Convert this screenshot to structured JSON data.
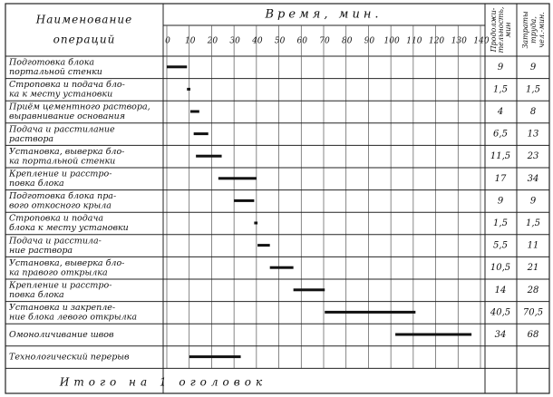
{
  "header": {
    "operations": [
      "Наименование",
      "операций"
    ],
    "time": "Время, мин.",
    "duration": [
      "Продолжи-",
      "тельность,",
      "мин"
    ],
    "labor": [
      "Затраты",
      "труда,",
      "чел.-мин."
    ]
  },
  "timeline": {
    "xlim": [
      0,
      140
    ],
    "xticks": [
      0,
      10,
      20,
      30,
      40,
      50,
      60,
      70,
      80,
      90,
      100,
      110,
      120,
      130,
      140
    ]
  },
  "rows": [
    {
      "name": [
        "Подготовка блока",
        "портальной стенки"
      ],
      "duration": "9",
      "labor": "9",
      "start": 0,
      "end": 9
    },
    {
      "name": [
        "Строповка и подача бло-",
        "ка к месту установки"
      ],
      "duration": "1,5",
      "labor": "1,5",
      "start": 9,
      "end": 10.5
    },
    {
      "name": [
        "Приём цементного раствора,",
        "выравнивание основания"
      ],
      "duration": "4",
      "labor": "8",
      "start": 10.5,
      "end": 14.5
    },
    {
      "name": [
        "Подача и расстилание",
        "раствора"
      ],
      "duration": "6,5",
      "labor": "13",
      "start": 12,
      "end": 18.5
    },
    {
      "name": [
        "Установка, выверка бло-",
        "ка портальной стенки"
      ],
      "duration": "11,5",
      "labor": "23",
      "start": 13,
      "end": 24.5
    },
    {
      "name": [
        "Крепление и расстро-",
        "повка блока"
      ],
      "duration": "17",
      "labor": "34",
      "start": 23,
      "end": 40
    },
    {
      "name": [
        "Подготовка блока пра-",
        "вого откосного крыла"
      ],
      "duration": "9",
      "labor": "9",
      "start": 30,
      "end": 39
    },
    {
      "name": [
        "Строповка и подача",
        "блока к месту установки"
      ],
      "duration": "1,5",
      "labor": "1,5",
      "start": 39,
      "end": 40.5
    },
    {
      "name": [
        "Подача и расстила-",
        "ние раствора"
      ],
      "duration": "5,5",
      "labor": "11",
      "start": 40.5,
      "end": 46
    },
    {
      "name": [
        "Установка, выверка бло-",
        "ка правого открылка"
      ],
      "duration": "10,5",
      "labor": "21",
      "start": 46,
      "end": 56.5
    },
    {
      "name": [
        "Крепление и расстро-",
        "повка блока"
      ],
      "duration": "14",
      "labor": "28",
      "start": 56.5,
      "end": 70.5
    },
    {
      "name": [
        "Установка и закрепле-",
        "ние блока левого открылка"
      ],
      "duration": "40,5",
      "labor": "70,5",
      "start": 70.5,
      "end": 111
    },
    {
      "name": [
        "Омоноличивание швов"
      ],
      "duration": "34",
      "labor": "68",
      "start": 102,
      "end": 136
    },
    {
      "name": [
        "Технологический перерыв"
      ],
      "duration": null,
      "labor": null,
      "start": 10,
      "end": 33
    }
  ],
  "total": "Итого на 1 оголовок"
}
